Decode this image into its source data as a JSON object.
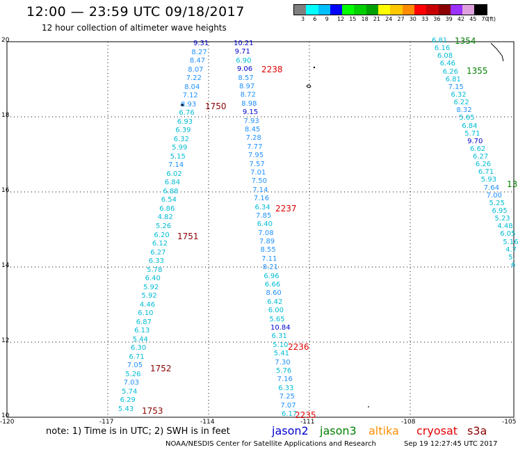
{
  "title": "12:00  —  23:59  UTC  09/18/2017",
  "subtitle": "12 hour collection of altimeter wave heights",
  "legend": {
    "colors": [
      "#7f7f7f",
      "#00ffff",
      "#00bfff",
      "#0000ff",
      "#00ff00",
      "#00d000",
      "#00a000",
      "#ffff00",
      "#ffc800",
      "#ff8c00",
      "#ff0000",
      "#c80000",
      "#8b0000",
      "#9b30ff",
      "#dda0dd",
      "#000000"
    ],
    "labels": [
      "3",
      "6",
      "9",
      "12",
      "15",
      "18",
      "21",
      "24",
      "27",
      "30",
      "33",
      "36",
      "39",
      "42",
      "45",
      "70",
      "(ft)"
    ]
  },
  "map": {
    "lat_labels": [
      "20",
      "18",
      "16",
      "14",
      "12",
      "10"
    ],
    "lon_labels": [
      "-120",
      "-117",
      "-114",
      "-111",
      "-108",
      "-105"
    ]
  },
  "track_a": {
    "points": [
      {
        "v": "9.31",
        "c": "#0000cd"
      },
      {
        "v": "8.27",
        "c": "#1e90ff"
      },
      {
        "v": "8.47",
        "c": "#1e90ff"
      },
      {
        "v": "8.07",
        "c": "#1e90ff"
      },
      {
        "v": "7.22",
        "c": "#1e90ff"
      },
      {
        "v": "8.04",
        "c": "#1e90ff"
      },
      {
        "v": "7.12",
        "c": "#1e90ff"
      },
      {
        "v": "8.93",
        "c": "#1e90ff"
      },
      {
        "v": "6.76",
        "c": "#00bcd4"
      },
      {
        "v": "6.93",
        "c": "#00bcd4"
      },
      {
        "v": "6.39",
        "c": "#00bcd4"
      },
      {
        "v": "6.32",
        "c": "#00bcd4"
      },
      {
        "v": "5.99",
        "c": "#00bcd4"
      },
      {
        "v": "5.15",
        "c": "#00bcd4"
      },
      {
        "v": "7.14",
        "c": "#1e90ff"
      },
      {
        "v": "6.02",
        "c": "#00bcd4"
      },
      {
        "v": "6.84",
        "c": "#00bcd4"
      },
      {
        "v": "6.88",
        "c": "#00bcd4"
      },
      {
        "v": "6.54",
        "c": "#00bcd4"
      },
      {
        "v": "6.86",
        "c": "#00bcd4"
      },
      {
        "v": "4.82",
        "c": "#00bcd4"
      },
      {
        "v": "5.26",
        "c": "#00bcd4"
      },
      {
        "v": "6.20",
        "c": "#00bcd4"
      },
      {
        "v": "6.12",
        "c": "#00bcd4"
      },
      {
        "v": "6.27",
        "c": "#00bcd4"
      },
      {
        "v": "6.33",
        "c": "#00bcd4"
      },
      {
        "v": "5.78",
        "c": "#00bcd4"
      },
      {
        "v": "6.40",
        "c": "#00bcd4"
      },
      {
        "v": "5.92",
        "c": "#00bcd4"
      },
      {
        "v": "5.92",
        "c": "#00bcd4"
      },
      {
        "v": "4.46",
        "c": "#00bcd4"
      },
      {
        "v": "6.10",
        "c": "#00bcd4"
      },
      {
        "v": "6.87",
        "c": "#00bcd4"
      },
      {
        "v": "6.13",
        "c": "#00bcd4"
      },
      {
        "v": "5.44",
        "c": "#00bcd4"
      },
      {
        "v": "6.30",
        "c": "#00bcd4"
      },
      {
        "v": "6.71",
        "c": "#00bcd4"
      },
      {
        "v": "7.05",
        "c": "#1e90ff"
      },
      {
        "v": "5.26",
        "c": "#00bcd4"
      },
      {
        "v": "7.03",
        "c": "#1e90ff"
      },
      {
        "v": "5.74",
        "c": "#00bcd4"
      },
      {
        "v": "6.29",
        "c": "#00bcd4"
      },
      {
        "v": "5.43",
        "c": "#00bcd4"
      }
    ]
  },
  "track_b": {
    "points": [
      {
        "v": "10.21",
        "c": "#0000cd"
      },
      {
        "v": "9.71",
        "c": "#0000cd"
      },
      {
        "v": "6.90",
        "c": "#00bcd4"
      },
      {
        "v": "9.06",
        "c": "#0000cd"
      },
      {
        "v": "8.57",
        "c": "#1e90ff"
      },
      {
        "v": "8.97",
        "c": "#1e90ff"
      },
      {
        "v": "8.72",
        "c": "#1e90ff"
      },
      {
        "v": "8.98",
        "c": "#1e90ff"
      },
      {
        "v": "9.15",
        "c": "#0000cd"
      },
      {
        "v": "7.93",
        "c": "#1e90ff"
      },
      {
        "v": "8.45",
        "c": "#1e90ff"
      },
      {
        "v": "7.28",
        "c": "#1e90ff"
      },
      {
        "v": "7.77",
        "c": "#1e90ff"
      },
      {
        "v": "7.95",
        "c": "#1e90ff"
      },
      {
        "v": "7.57",
        "c": "#1e90ff"
      },
      {
        "v": "7.01",
        "c": "#1e90ff"
      },
      {
        "v": "7.50",
        "c": "#1e90ff"
      },
      {
        "v": "7.14",
        "c": "#1e90ff"
      },
      {
        "v": "7.16",
        "c": "#1e90ff"
      },
      {
        "v": "6.34",
        "c": "#00bcd4"
      },
      {
        "v": "7.85",
        "c": "#1e90ff"
      },
      {
        "v": "6.40",
        "c": "#00bcd4"
      },
      {
        "v": "7.08",
        "c": "#1e90ff"
      },
      {
        "v": "7.89",
        "c": "#1e90ff"
      },
      {
        "v": "8.55",
        "c": "#1e90ff"
      },
      {
        "v": "7.11",
        "c": "#1e90ff"
      },
      {
        "v": "8.21",
        "c": "#1e90ff"
      },
      {
        "v": "6.96",
        "c": "#00bcd4"
      },
      {
        "v": "6.66",
        "c": "#00bcd4"
      },
      {
        "v": "8.60",
        "c": "#1e90ff"
      },
      {
        "v": "6.42",
        "c": "#00bcd4"
      },
      {
        "v": "6.00",
        "c": "#00bcd4"
      },
      {
        "v": "5.65",
        "c": "#00bcd4"
      },
      {
        "v": "10.84",
        "c": "#0000cd"
      },
      {
        "v": "6.31",
        "c": "#00bcd4"
      },
      {
        "v": "5.10",
        "c": "#00bcd4"
      },
      {
        "v": "5.41",
        "c": "#00bcd4"
      },
      {
        "v": "7.30",
        "c": "#1e90ff"
      },
      {
        "v": "5.76",
        "c": "#00bcd4"
      },
      {
        "v": "7.16",
        "c": "#1e90ff"
      },
      {
        "v": "6.33",
        "c": "#00bcd4"
      },
      {
        "v": "7.25",
        "c": "#1e90ff"
      },
      {
        "v": "7.07",
        "c": "#1e90ff"
      },
      {
        "v": "6.17",
        "c": "#00bcd4"
      }
    ]
  },
  "track_c": {
    "points": [
      {
        "v": "6.81",
        "c": "#00bcd4"
      },
      {
        "v": "6.16",
        "c": "#00bcd4"
      },
      {
        "v": "6.08",
        "c": "#00bcd4"
      },
      {
        "v": "6.46",
        "c": "#00bcd4"
      },
      {
        "v": "6.26",
        "c": "#00bcd4"
      },
      {
        "v": "6.81",
        "c": "#00bcd4"
      },
      {
        "v": "7.15",
        "c": "#1e90ff"
      },
      {
        "v": "6.32",
        "c": "#00bcd4"
      },
      {
        "v": "6.22",
        "c": "#00bcd4"
      },
      {
        "v": "8.32",
        "c": "#1e90ff"
      },
      {
        "v": "5.65",
        "c": "#00bcd4"
      },
      {
        "v": "6.84",
        "c": "#00bcd4"
      },
      {
        "v": "5.71",
        "c": "#00bcd4"
      },
      {
        "v": "9.70",
        "c": "#0000cd"
      },
      {
        "v": "6.62",
        "c": "#00bcd4"
      },
      {
        "v": "6.27",
        "c": "#00bcd4"
      },
      {
        "v": "6.26",
        "c": "#00bcd4"
      },
      {
        "v": "6.71",
        "c": "#00bcd4"
      },
      {
        "v": "5.93",
        "c": "#00bcd4"
      },
      {
        "v": "7.64",
        "c": "#1e90ff"
      },
      {
        "v": "7.00",
        "c": "#1e90ff"
      },
      {
        "v": "5.25",
        "c": "#00bcd4"
      },
      {
        "v": "6.95",
        "c": "#00bcd4"
      },
      {
        "v": "5.23",
        "c": "#00bcd4"
      },
      {
        "v": "4.48",
        "c": "#00bcd4"
      },
      {
        "v": "6.05",
        "c": "#00bcd4"
      },
      {
        "v": "5.16",
        "c": "#00bcd4"
      },
      {
        "v": "4.7",
        "c": "#00bcd4"
      },
      {
        "v": "5.",
        "c": "#00bcd4"
      },
      {
        "v": "6",
        "c": "#00bcd4"
      }
    ]
  },
  "times": [
    {
      "t": "1750",
      "c": "#8b0000"
    },
    {
      "t": "1751",
      "c": "#8b0000"
    },
    {
      "t": "1752",
      "c": "#8b0000"
    },
    {
      "t": "1753",
      "c": "#8b0000"
    },
    {
      "t": "2238",
      "c": "#e00000"
    },
    {
      "t": "2237",
      "c": "#e00000"
    },
    {
      "t": "2236",
      "c": "#e00000"
    },
    {
      "t": "2235",
      "c": "#e00000"
    },
    {
      "t": "1354",
      "c": "#008000"
    },
    {
      "t": "1355",
      "c": "#008000"
    },
    {
      "t": "13",
      "c": "#008000"
    }
  ],
  "note": "note:  1) Time is in UTC;  2) SWH is in feet",
  "satellites": [
    {
      "name": "jason2",
      "c": "#0000cd"
    },
    {
      "name": "jason3",
      "c": "#008000"
    },
    {
      "name": "altika",
      "c": "#ff8c00"
    },
    {
      "name": "cryosat",
      "c": "#e00000"
    },
    {
      "name": "s3a",
      "c": "#8b0000"
    }
  ],
  "footer_left": "NOAA/NESDIS Center for Satellite Applications and Research",
  "footer_right": "Sep 19 12:27:45 UTC 2017"
}
